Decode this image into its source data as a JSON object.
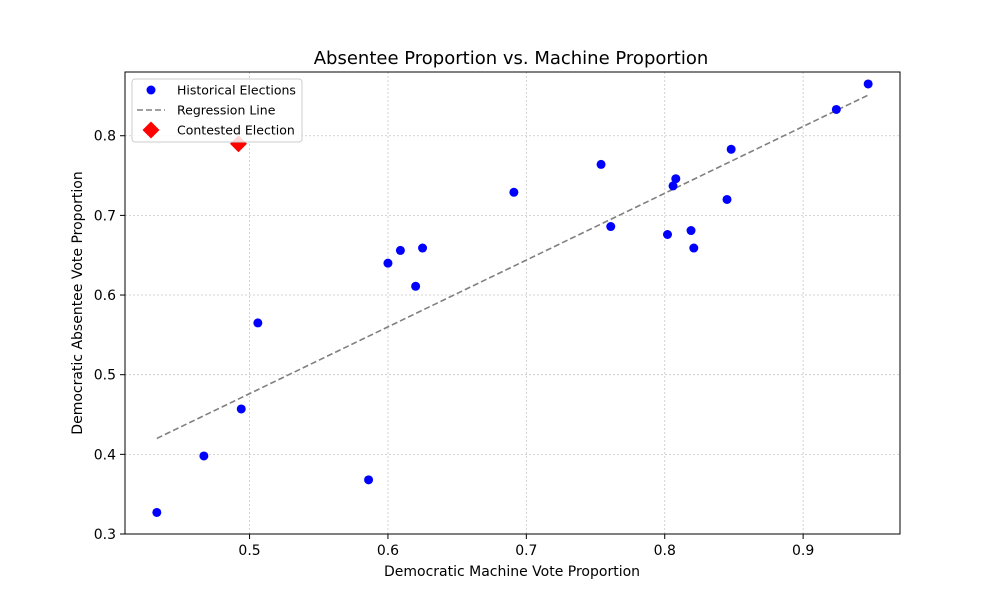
{
  "chart_data": {
    "type": "scatter",
    "title": "Absentee Proportion vs. Machine Proportion",
    "xlabel": "Democratic Machine Vote Proportion",
    "ylabel": "Democratic Absentee Vote Proportion",
    "xlim": [
      0.41,
      0.97
    ],
    "ylim": [
      0.3,
      0.88
    ],
    "xticks": [
      0.5,
      0.6,
      0.7,
      0.8,
      0.9
    ],
    "xtick_labels": [
      "0.5",
      "0.6",
      "0.7",
      "0.8",
      "0.9"
    ],
    "yticks": [
      0.3,
      0.4,
      0.5,
      0.6,
      0.7,
      0.8
    ],
    "ytick_labels": [
      "0.3",
      "0.4",
      "0.5",
      "0.6",
      "0.7",
      "0.8"
    ],
    "grid": true,
    "legend_position": "top-left",
    "series": [
      {
        "name": "Historical Elections",
        "kind": "scatter",
        "color": "#0000ff",
        "marker": "circle",
        "points": [
          {
            "x": 0.433,
            "y": 0.327
          },
          {
            "x": 0.467,
            "y": 0.398
          },
          {
            "x": 0.494,
            "y": 0.457
          },
          {
            "x": 0.506,
            "y": 0.565
          },
          {
            "x": 0.586,
            "y": 0.368
          },
          {
            "x": 0.6,
            "y": 0.64
          },
          {
            "x": 0.609,
            "y": 0.656
          },
          {
            "x": 0.62,
            "y": 0.611
          },
          {
            "x": 0.625,
            "y": 0.659
          },
          {
            "x": 0.691,
            "y": 0.729
          },
          {
            "x": 0.754,
            "y": 0.764
          },
          {
            "x": 0.761,
            "y": 0.686
          },
          {
            "x": 0.802,
            "y": 0.676
          },
          {
            "x": 0.806,
            "y": 0.737
          },
          {
            "x": 0.808,
            "y": 0.746
          },
          {
            "x": 0.819,
            "y": 0.681
          },
          {
            "x": 0.821,
            "y": 0.659
          },
          {
            "x": 0.845,
            "y": 0.72
          },
          {
            "x": 0.848,
            "y": 0.783
          },
          {
            "x": 0.924,
            "y": 0.833
          },
          {
            "x": 0.947,
            "y": 0.865
          }
        ]
      },
      {
        "name": "Regression Line",
        "kind": "line",
        "color": "#808080",
        "style": "dashed",
        "points": [
          {
            "x": 0.433,
            "y": 0.42
          },
          {
            "x": 0.947,
            "y": 0.851
          }
        ]
      },
      {
        "name": "Contested Election",
        "kind": "scatter",
        "color": "#ff0000",
        "marker": "diamond",
        "points": [
          {
            "x": 0.492,
            "y": 0.79
          }
        ]
      }
    ]
  }
}
